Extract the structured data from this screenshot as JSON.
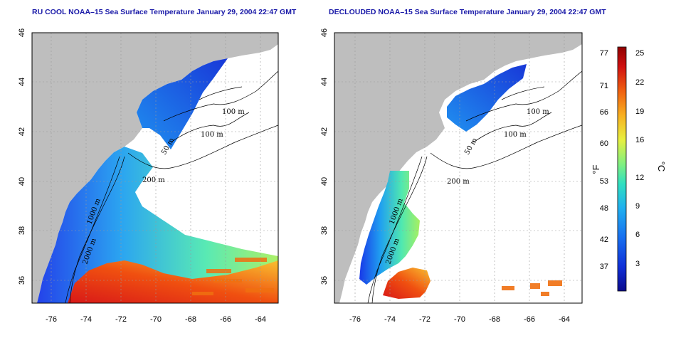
{
  "panels": [
    {
      "id": "left",
      "title": "RU COOL NOAA–15 Sea Surface Temperature January 29, 2004 22:47 GMT",
      "y_ticks": [
        "46",
        "44",
        "42",
        "40",
        "38",
        "36"
      ],
      "x_ticks": [
        "-76",
        "-74",
        "-72",
        "-70",
        "-68",
        "-66",
        "-64"
      ],
      "contour_labels": [
        "100 m",
        "100 m",
        "50 m",
        "200 m",
        "1000 m",
        "2000 m"
      ]
    },
    {
      "id": "right",
      "title": "DECLOUDED NOAA–15 Sea Surface Temperature January 29, 2004 22:47 GMT",
      "y_ticks": [
        "46",
        "44",
        "42",
        "40",
        "38",
        "36"
      ],
      "x_ticks": [
        "-76",
        "-74",
        "-72",
        "-70",
        "-68",
        "-66",
        "-64"
      ],
      "contour_labels": [
        "100 m",
        "100 m",
        "50 m",
        "200 m",
        "1000 m",
        "2000 m"
      ]
    }
  ],
  "colorbar": {
    "f_ticks": [
      "77",
      "71",
      "66",
      "60",
      "53",
      "48",
      "42",
      "37"
    ],
    "c_ticks": [
      "25",
      "22",
      "19",
      "16",
      "12",
      "9",
      "6",
      "3"
    ],
    "f_label": "°F",
    "c_label": "°C",
    "colors": [
      "#0a0a8c",
      "#1030d8",
      "#1870f0",
      "#20b0f0",
      "#30e0c0",
      "#80f080",
      "#e8f040",
      "#f8b020",
      "#f06010",
      "#d01010",
      "#900000"
    ]
  },
  "colors": {
    "land": "#bebebe",
    "cloud": "#ffffff",
    "title": "#1a1aa8"
  }
}
